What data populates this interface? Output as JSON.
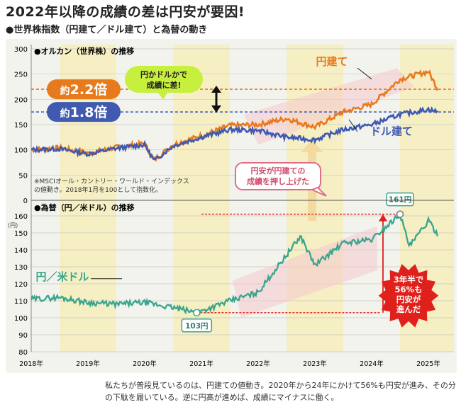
{
  "headline": "2022年以降の成績の差は円安が要因!",
  "subhead": "●世界株指数（円建て／ドル建て）と為替の動き",
  "caption": "私たちが普段見ているのは、円建ての値動き。2020年から24年にかけて56%も円安が進み、その分の下駄を履いている。逆に円高が進めば、成績にマイナスに働く。",
  "colors": {
    "yen": "#e87a1e",
    "usd": "#3f5ab0",
    "fx": "#3aa58c",
    "red": "#e0201a",
    "band": "#f6efc4",
    "pink": "#f4c9cf",
    "arrow": "#f1d79a"
  },
  "chart_data": [
    {
      "type": "line",
      "panel_title": "●オルカン（世界株）の推移",
      "x": [
        "2018-01",
        "2018-07",
        "2019-01",
        "2019-07",
        "2020-01",
        "2020-03",
        "2020-07",
        "2021-01",
        "2021-07",
        "2022-01",
        "2022-07",
        "2023-01",
        "2023-07",
        "2024-01",
        "2024-07",
        "2025-01",
        "2025-03"
      ],
      "xticks": [
        "2018年",
        "2019年",
        "2020年",
        "2021年",
        "2022年",
        "2023年",
        "2024年",
        "2025年"
      ],
      "ylim": [
        0,
        300
      ],
      "yticks": [
        "0",
        "50",
        "100",
        "150",
        "200",
        "250",
        "300"
      ],
      "series": [
        {
          "name": "円建て",
          "values": [
            100,
            104,
            93,
            105,
            112,
            80,
            110,
            128,
            148,
            150,
            162,
            145,
            175,
            190,
            240,
            255,
            220
          ]
        },
        {
          "name": "ドル建て",
          "values": [
            100,
            102,
            92,
            103,
            110,
            78,
            108,
            125,
            140,
            138,
            125,
            120,
            140,
            150,
            170,
            180,
            175
          ]
        }
      ],
      "reference_lines": [
        {
          "label_prefix": "約",
          "label_value": "2.2倍",
          "y": 220
        },
        {
          "label_prefix": "約",
          "label_value": "1.8倍",
          "y": 175
        }
      ],
      "annotations": {
        "gap": "円かドルかで成績に差!",
        "push": "円安が円建ての成績を押し上げた",
        "note": "※MSCIオール・カントリー・ワールド・インデックスの値動き。2018年1月を100として指数化。"
      }
    },
    {
      "type": "line",
      "panel_title": "●為替（円／米ドル）の推移",
      "y_unit": "(円)",
      "x": [
        "2018-01",
        "2018-07",
        "2019-01",
        "2019-07",
        "2020-01",
        "2020-07",
        "2020-12",
        "2021-07",
        "2022-01",
        "2022-10",
        "2023-01",
        "2023-07",
        "2024-01",
        "2024-07",
        "2024-09",
        "2025-01",
        "2025-03"
      ],
      "ylim": [
        80,
        160
      ],
      "yticks": [
        "80",
        "90",
        "100",
        "110",
        "120",
        "130",
        "140",
        "150",
        "160"
      ],
      "series": [
        {
          "name": "円／米ドル",
          "values": [
            111,
            112,
            109,
            108,
            109,
            106,
            103,
            110,
            115,
            148,
            131,
            144,
            146,
            161,
            142,
            157,
            149
          ]
        }
      ],
      "markers": [
        {
          "label": "161円",
          "y": 161
        },
        {
          "label": "103円",
          "y": 103
        }
      ],
      "annotations": {
        "result": "3年半で56%も円安が進んだ"
      }
    }
  ]
}
